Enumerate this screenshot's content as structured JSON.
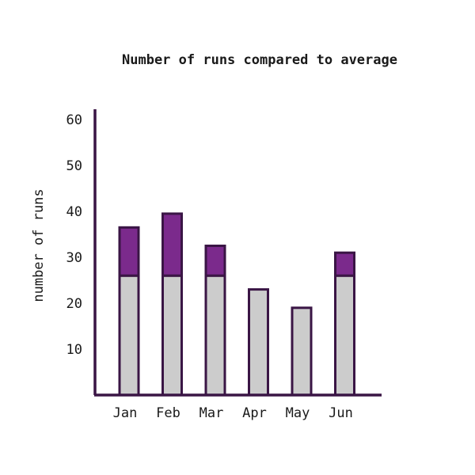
{
  "chart_data": {
    "type": "bar",
    "stacked": true,
    "title": "Number of runs compared to average",
    "xlabel": "",
    "ylabel": "number of runs",
    "categories": [
      "Jan",
      "Feb",
      "Mar",
      "Apr",
      "May",
      "Jun"
    ],
    "series": [
      {
        "values": [
          26,
          26,
          26,
          23,
          19,
          26
        ]
      },
      {
        "values": [
          10.5,
          13.5,
          6.5,
          0,
          0,
          5
        ]
      }
    ],
    "yticks": [
      10,
      20,
      30,
      40,
      50,
      60
    ],
    "ylim": [
      0,
      63
    ],
    "grid": false,
    "colors": {
      "base": "#cccccc",
      "above": "#7b2a8c",
      "outline": "#3a1545",
      "axis": "#3a1545"
    }
  }
}
